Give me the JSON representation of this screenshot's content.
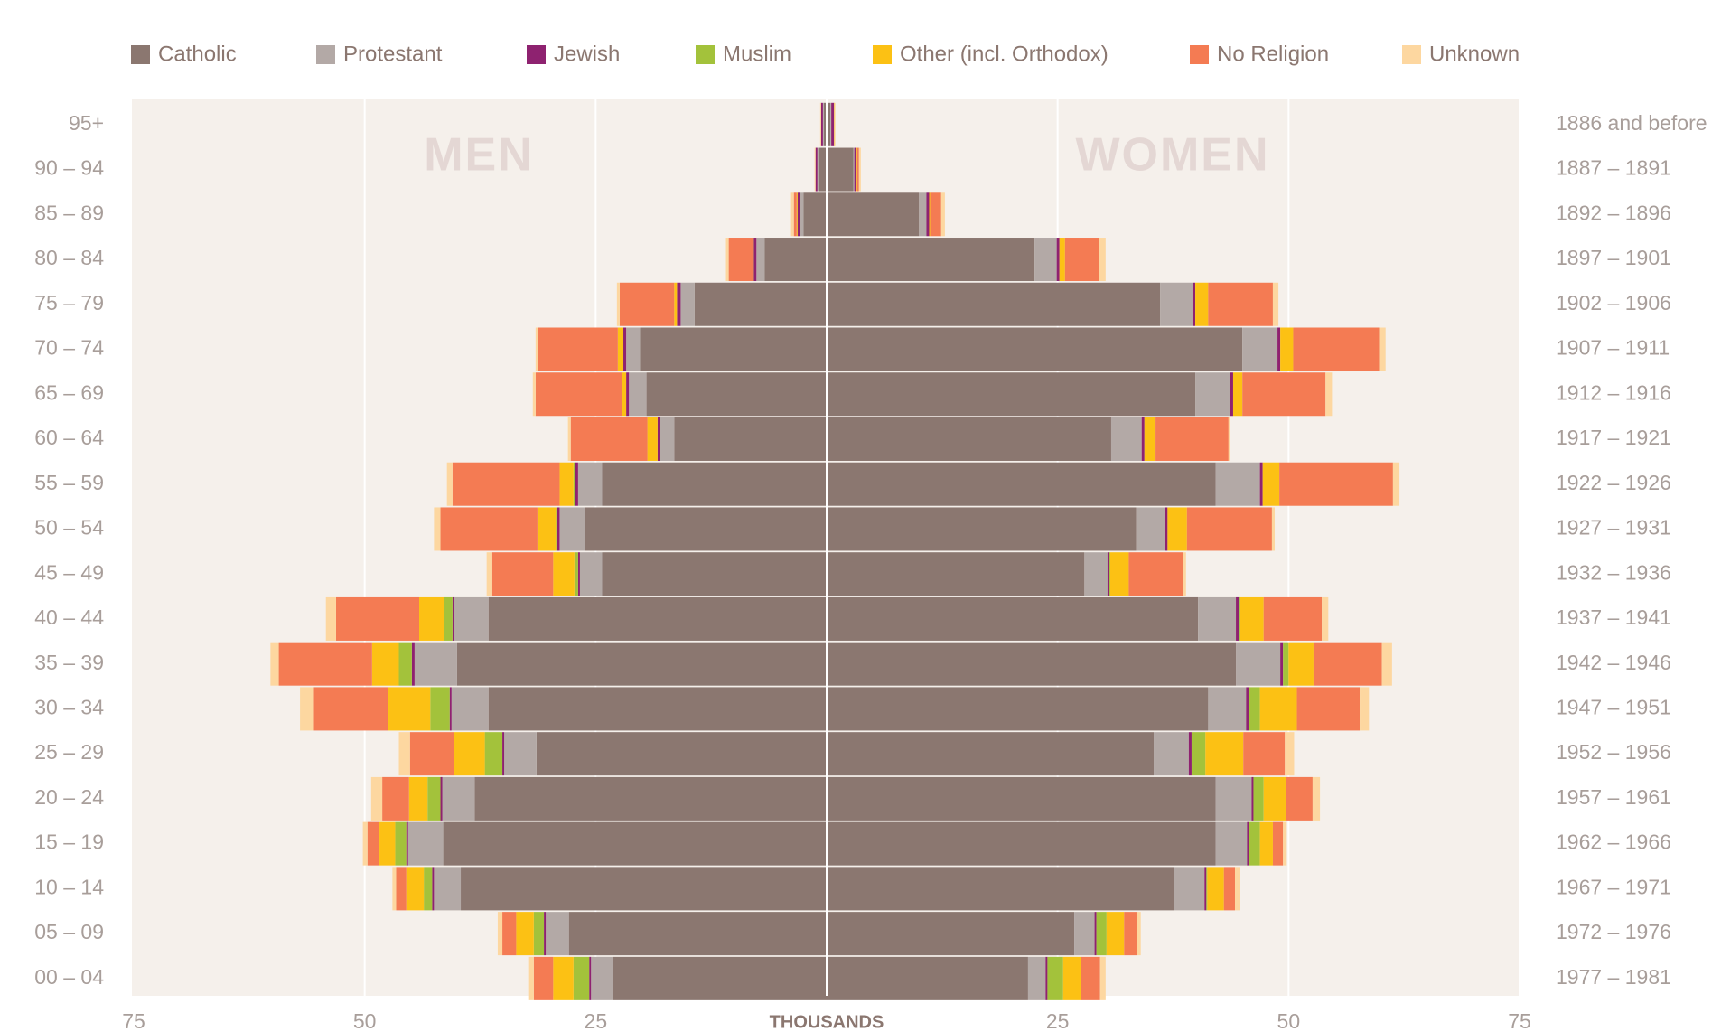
{
  "chart_data": {
    "type": "pyramid",
    "left_label": "MEN",
    "right_label": "WOMEN",
    "x_label": "THOUSANDS",
    "categories": [
      "95+",
      "90 – 94",
      "85 – 89",
      "80 – 84",
      "75 – 79",
      "70 – 74",
      "65 – 69",
      "60 – 64",
      "55 – 59",
      "50 – 54",
      "45 – 49",
      "40 – 44",
      "35 – 39",
      "30 – 34",
      "25 – 29",
      "20 – 24",
      "15 – 19",
      "10 – 14",
      "05 – 09",
      "00 – 04"
    ],
    "birth_years": [
      "1886 and before",
      "1887 – 1891",
      "1892 – 1896",
      "1897 – 1901",
      "1902 – 1906",
      "1907 – 1911",
      "1912 – 1916",
      "1917 – 1921",
      "1922 – 1926",
      "1927 – 1931",
      "1932 – 1936",
      "1937 – 1941",
      "1942 – 1946",
      "1947 – 1951",
      "1952 – 1956",
      "1957 – 1961",
      "1962 – 1966",
      "1967 – 1971",
      "1972 – 1976",
      "1977 – 1981"
    ],
    "xlim": [
      0,
      75
    ],
    "xticks": [
      25,
      50,
      75
    ],
    "grid": true,
    "series": [
      {
        "name": "Catholic",
        "color": "#8b7770",
        "men": [
          0.3,
          0.8,
          2.5,
          6.7,
          14.3,
          20.2,
          19.5,
          16.5,
          24.3,
          26.2,
          24.3,
          36.6,
          40.0,
          36.6,
          31.4,
          38.1,
          41.5,
          39.6,
          27.9,
          23.1
        ],
        "women": [
          0.4,
          2.9,
          10.0,
          22.5,
          36.1,
          45.0,
          39.9,
          30.8,
          42.1,
          33.5,
          27.9,
          40.2,
          44.3,
          41.3,
          35.4,
          42.1,
          42.1,
          37.6,
          26.8,
          21.8
        ]
      },
      {
        "name": "Protestant",
        "color": "#b3a9a6",
        "men": [
          0.1,
          0.2,
          0.35,
          0.9,
          1.5,
          1.5,
          1.9,
          1.5,
          2.6,
          2.7,
          2.4,
          3.7,
          4.6,
          4.0,
          3.5,
          3.5,
          3.8,
          2.9,
          2.5,
          2.4
        ],
        "women": [
          0.1,
          0.1,
          0.8,
          2.4,
          3.5,
          3.8,
          3.8,
          3.3,
          4.8,
          3.1,
          2.5,
          4.1,
          4.8,
          4.1,
          3.8,
          3.9,
          3.4,
          3.3,
          2.2,
          1.9
        ]
      },
      {
        "name": "Jewish",
        "color": "#8e2270",
        "men": [
          0.2,
          0.2,
          0.3,
          0.3,
          0.4,
          0.3,
          0.3,
          0.3,
          0.3,
          0.3,
          0.2,
          0.2,
          0.3,
          0.2,
          0.2,
          0.2,
          0.2,
          0.2,
          0.2,
          0.2
        ],
        "women": [
          0.3,
          0.2,
          0.3,
          0.3,
          0.3,
          0.3,
          0.3,
          0.3,
          0.3,
          0.3,
          0.2,
          0.3,
          0.3,
          0.3,
          0.3,
          0.2,
          0.2,
          0.2,
          0.2,
          0.2
        ]
      },
      {
        "name": "Muslim",
        "color": "#a3c23b",
        "men": [
          0,
          0,
          0,
          0,
          0,
          0,
          0,
          0,
          0.2,
          0.1,
          0.4,
          0.9,
          1.4,
          2.1,
          1.9,
          1.4,
          1.2,
          0.9,
          1.1,
          1.7
        ],
        "women": [
          0,
          0,
          0,
          0,
          0,
          0,
          0,
          0,
          0,
          0,
          0.1,
          0.1,
          0.6,
          1.2,
          1.5,
          1.1,
          1.2,
          0.1,
          1.1,
          1.7
        ]
      },
      {
        "name": "Other (incl. Orthodox)",
        "color": "#fcc114",
        "men": [
          0,
          0,
          0.1,
          0.1,
          0.3,
          0.6,
          0.4,
          1.1,
          1.5,
          2.0,
          2.3,
          2.7,
          2.9,
          4.6,
          3.3,
          2.0,
          1.7,
          1.9,
          1.9,
          2.2
        ],
        "women": [
          0.05,
          0.1,
          0.1,
          0.6,
          1.4,
          1.4,
          1.0,
          1.2,
          1.8,
          2.1,
          2.0,
          2.6,
          2.7,
          4.0,
          4.1,
          2.4,
          1.4,
          1.8,
          1.9,
          1.9
        ]
      },
      {
        "name": "No Religion",
        "color": "#f47b53",
        "men": [
          0,
          0,
          0.3,
          2.6,
          5.9,
          8.6,
          9.4,
          8.3,
          11.6,
          10.5,
          6.6,
          9.0,
          10.1,
          8.0,
          4.8,
          2.9,
          1.3,
          1.1,
          1.5,
          2.1
        ],
        "women": [
          0,
          0.2,
          1.2,
          3.7,
          7.0,
          9.3,
          9.0,
          7.9,
          12.3,
          9.2,
          5.9,
          6.3,
          7.4,
          6.8,
          4.5,
          2.9,
          1.1,
          1.2,
          1.4,
          2.1
        ]
      },
      {
        "name": "Unknown",
        "color": "#fdd7a0",
        "men": [
          0.1,
          0.1,
          0.4,
          0.3,
          0.3,
          0.3,
          0.3,
          0.3,
          0.6,
          0.7,
          0.6,
          1.1,
          0.9,
          1.5,
          1.2,
          1.2,
          0.5,
          0.4,
          0.5,
          0.6
        ],
        "women": [
          0.1,
          0.2,
          0.4,
          0.7,
          0.6,
          0.7,
          0.7,
          0.2,
          0.7,
          0.3,
          0.3,
          0.7,
          1.1,
          1.0,
          1.0,
          0.8,
          0.4,
          0.5,
          0.4,
          0.6
        ]
      }
    ]
  }
}
